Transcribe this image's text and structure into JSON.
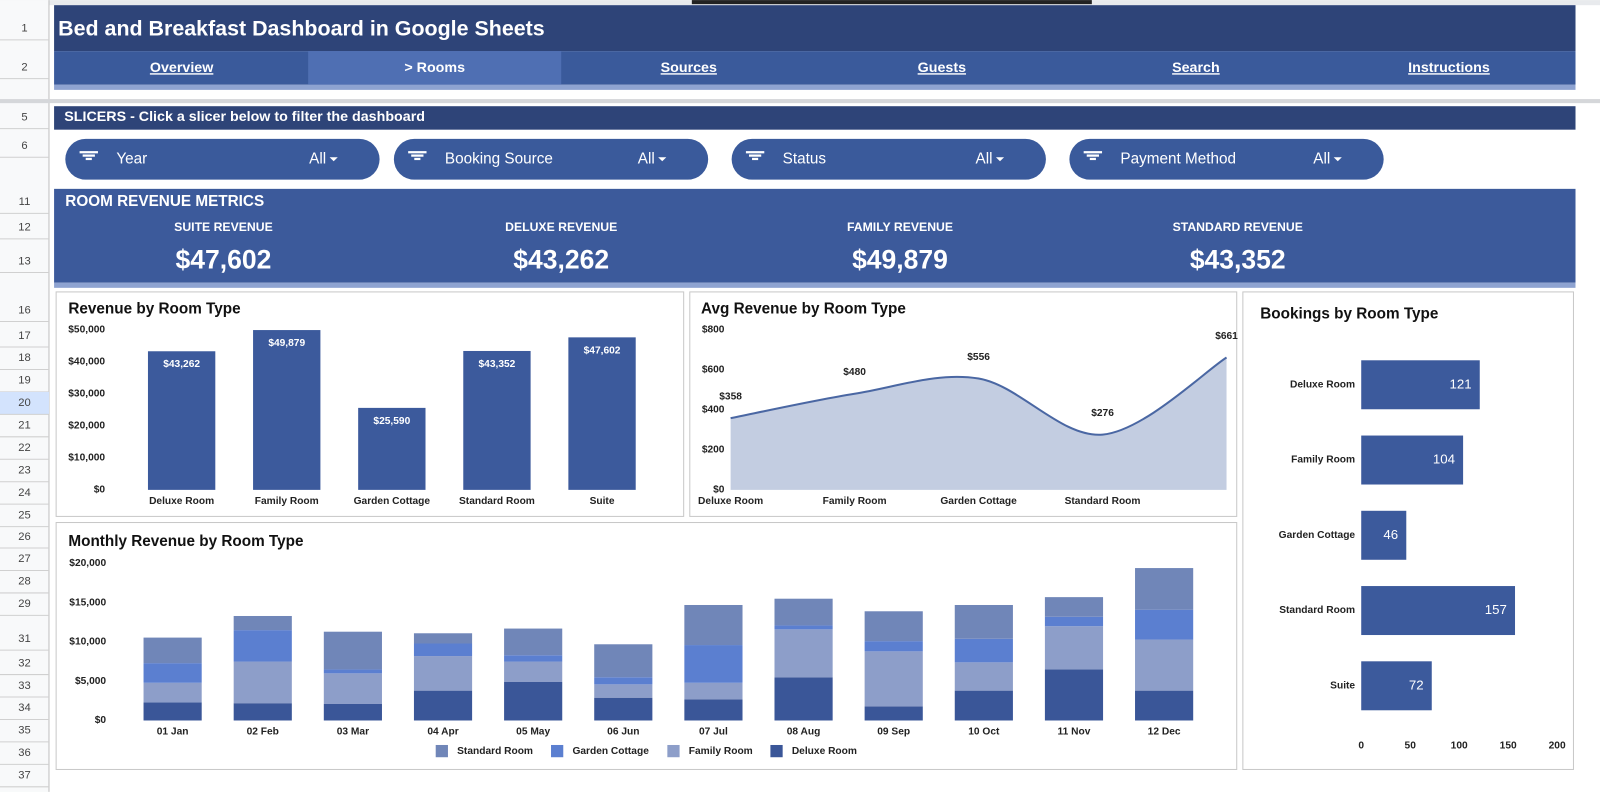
{
  "header": {
    "title": "Bed and Breakfast Dashboard in Google Sheets"
  },
  "nav": {
    "tabs": [
      "Overview",
      "> Rooms",
      "Sources",
      "Guests",
      "Search",
      "Instructions"
    ]
  },
  "row_numbers": [
    1,
    2,
    5,
    6,
    11,
    12,
    13,
    16,
    17,
    18,
    19,
    20,
    21,
    22,
    23,
    24,
    25,
    26,
    27,
    28,
    29,
    31,
    32,
    33,
    34,
    35,
    36,
    37
  ],
  "slicers": {
    "title": "SLICERS - Click a slicer below to filter the dashboard",
    "items": [
      {
        "label": "Year",
        "value": "All"
      },
      {
        "label": "Booking Source",
        "value": "All"
      },
      {
        "label": "Status",
        "value": "All"
      },
      {
        "label": "Payment Method",
        "value": "All"
      }
    ]
  },
  "metrics": {
    "title": "ROOM REVENUE METRICS",
    "items": [
      {
        "label": "SUITE REVENUE",
        "value": "$47,602"
      },
      {
        "label": "DELUXE REVENUE",
        "value": "$43,262"
      },
      {
        "label": "FAMILY REVENUE",
        "value": "$49,879"
      },
      {
        "label": "STANDARD REVENUE",
        "value": "$43,352"
      }
    ]
  },
  "chart_data": [
    {
      "type": "bar",
      "title": "Revenue by Room Type",
      "categories": [
        "Deluxe Room",
        "Family Room",
        "Garden Cottage",
        "Standard Room",
        "Suite"
      ],
      "values": [
        43262,
        49879,
        25590,
        43352,
        47602
      ],
      "value_labels": [
        "$43,262",
        "$49,879",
        "$25,590",
        "$43,352",
        "$47,602"
      ],
      "color": "#3c5a9c",
      "ylim": [
        0,
        50000
      ],
      "yticks": [
        {
          "value": 0,
          "label": "$0"
        },
        {
          "value": 10000,
          "label": "$10,000"
        },
        {
          "value": 20000,
          "label": "$20,000"
        },
        {
          "value": 30000,
          "label": "$30,000"
        },
        {
          "value": 40000,
          "label": "$40,000"
        },
        {
          "value": 50000,
          "label": "$50,000"
        }
      ]
    },
    {
      "type": "area",
      "title": "Avg Revenue by Room Type",
      "categories": [
        "Deluxe Room",
        "Family Room",
        "Garden Cottage",
        "Standard Room",
        null
      ],
      "values": [
        358,
        480,
        556,
        276,
        661
      ],
      "value_labels": [
        "$358",
        "$480",
        "$556",
        "$276",
        "$661"
      ],
      "color": "#4a67a3",
      "ylim": [
        0,
        800
      ],
      "yticks": [
        {
          "value": 0,
          "label": "$0"
        },
        {
          "value": 200,
          "label": "$200"
        },
        {
          "value": 400,
          "label": "$400"
        },
        {
          "value": 600,
          "label": "$600"
        },
        {
          "value": 800,
          "label": "$800"
        }
      ]
    },
    {
      "type": "hbar",
      "title": "Bookings by Room Type",
      "categories": [
        "Deluxe Room",
        "Family Room",
        "Garden Cottage",
        "Standard Room",
        "Suite"
      ],
      "values": [
        121,
        104,
        46,
        157,
        72
      ],
      "color": "#3c5a9c",
      "xlim": [
        0,
        200
      ],
      "xticks": [
        0,
        50,
        100,
        150,
        200
      ]
    },
    {
      "type": "stacked_bar",
      "title": "Monthly Revenue by Room Type",
      "categories": [
        "01 Jan",
        "02 Feb",
        "03 Mar",
        "04 Apr",
        "05 May",
        "06 Jun",
        "07 Jul",
        "08 Aug",
        "09 Sep",
        "10 Oct",
        "11 Nov",
        "12 Dec"
      ],
      "series": [
        {
          "name": "Standard Room",
          "color": "#7086b8",
          "values": [
            3250,
            1800,
            4800,
            1300,
            3400,
            4200,
            5100,
            3400,
            3800,
            4300,
            2500,
            5300
          ]
        },
        {
          "name": "Garden Cottage",
          "color": "#5b7fd0",
          "values": [
            2500,
            4000,
            500,
            1600,
            800,
            900,
            4800,
            500,
            1300,
            3000,
            1200,
            3800
          ]
        },
        {
          "name": "Family Room",
          "color": "#8d9ec9",
          "values": [
            2500,
            5300,
            3900,
            4400,
            2600,
            1700,
            2100,
            6100,
            7000,
            3600,
            5500,
            6500
          ]
        },
        {
          "name": "Deluxe Room",
          "color": "#3a5698",
          "values": [
            2300,
            2200,
            2100,
            3800,
            4900,
            2900,
            2700,
            5500,
            1800,
            3800,
            6500,
            3800
          ]
        }
      ],
      "ylim": [
        0,
        20000
      ],
      "yticks": [
        {
          "value": 0,
          "label": "$0"
        },
        {
          "value": 5000,
          "label": "$5,000"
        },
        {
          "value": 10000,
          "label": "$10,000"
        },
        {
          "value": 15000,
          "label": "$15,000"
        },
        {
          "value": 20000,
          "label": "$20,000"
        }
      ],
      "legend": "bottom"
    }
  ]
}
